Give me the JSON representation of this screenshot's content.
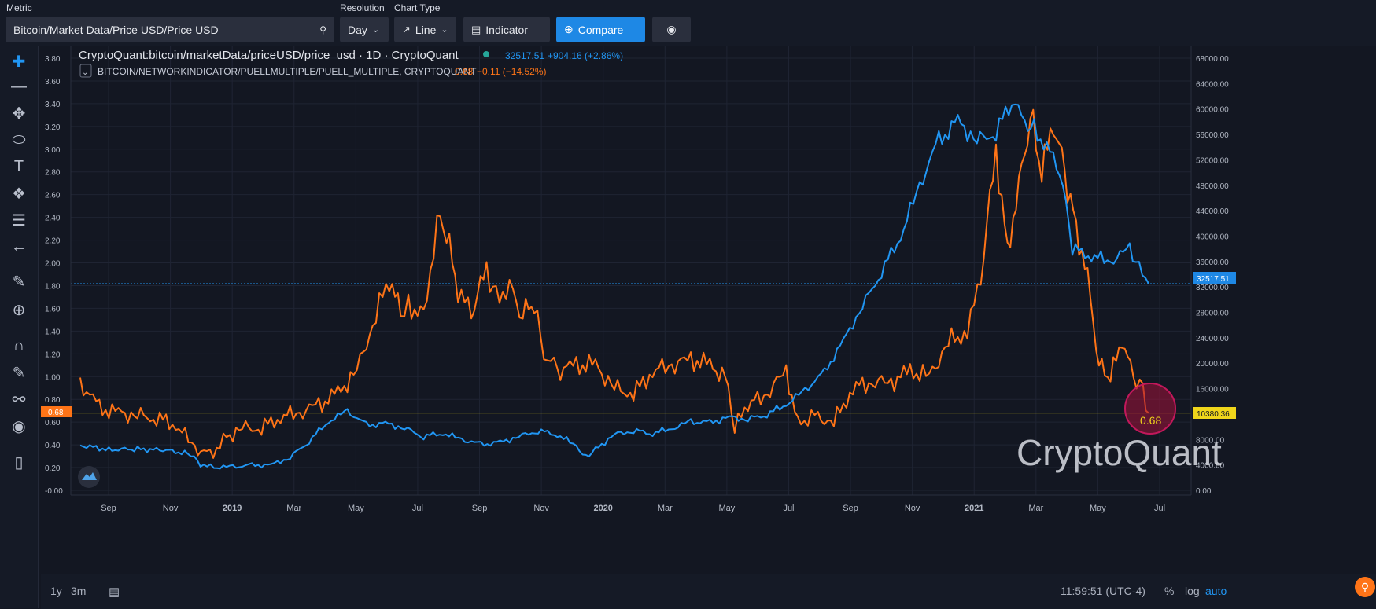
{
  "toolbar": {
    "metric_label": "Metric",
    "metric_value": "Bitcoin/Market Data/Price USD/Price USD",
    "resolution_label": "Resolution",
    "resolution_value": "Day",
    "chart_type_label": "Chart Type",
    "chart_type_value": "Line",
    "indicator_label": "Indicator",
    "compare_label": "Compare"
  },
  "legend": {
    "main_title": "CryptoQuant:bitcoin/marketData/priceUSD/price_usd · 1D · CryptoQuant",
    "main_value": "32517.51",
    "main_change": "+904.16 (+2.86%)",
    "second_title": "BITCOIN/NETWORKINDICATOR/PUELLMULTIPLE/PUELL_MULTIPLE, CRYPTOQUANT",
    "second_value": "0.68",
    "second_change": "−0.11 (−14.52%)"
  },
  "watermark": "CryptoQuant",
  "callout_value": "0.68",
  "left_price_badge": "0.68",
  "right_price_badge": "32517.51",
  "right_level_badge": "10380.36",
  "bottom": {
    "range_1y": "1y",
    "range_3m": "3m",
    "clock": "11:59:51 (UTC-4)",
    "pct": "%",
    "log": "log",
    "auto": "auto"
  },
  "colors": {
    "price_line": "#2196f3",
    "puell_line": "#ff7417",
    "level_line": "#f0d61b",
    "background": "#131722",
    "accent": "#1e88e5"
  },
  "icons": [
    "search-icon",
    "chevron-down-icon",
    "line-chart-icon",
    "plus-circle-icon",
    "camera-icon",
    "crosshair-icon",
    "trend-line-icon",
    "pitchfork-icon",
    "ellipse-icon",
    "text-icon",
    "pattern-icon",
    "fib-icon",
    "arrow-left-icon",
    "ruler-icon",
    "zoom-icon",
    "magnet-icon",
    "lock-draw-icon",
    "lock-icon",
    "eye-icon",
    "trash-icon",
    "zoom-fab-icon"
  ],
  "chart_data": {
    "type": "line",
    "x_ticks": [
      "Sep",
      "Nov",
      "2019",
      "Mar",
      "May",
      "Jul",
      "Sep",
      "Nov",
      "2020",
      "Mar",
      "May",
      "Jul",
      "Sep",
      "Nov",
      "2021",
      "Mar",
      "May",
      "Jul"
    ],
    "left_axis": {
      "ticks": [
        "3.80",
        "3.60",
        "3.40",
        "3.20",
        "3.00",
        "2.80",
        "2.60",
        "2.40",
        "2.20",
        "2.00",
        "1.80",
        "1.60",
        "1.40",
        "1.20",
        "1.00",
        "0.80",
        "0.60",
        "0.40",
        "0.20",
        "-0.00"
      ],
      "range": [
        0,
        3.8
      ]
    },
    "right_axis": {
      "ticks": [
        "68000.00",
        "64000.00",
        "60000.00",
        "56000.00",
        "52000.00",
        "48000.00",
        "44000.00",
        "40000.00",
        "36000.00",
        "32000.00",
        "28000.00",
        "24000.00",
        "20000.00",
        "16000.00",
        "12000.00",
        "8000.00",
        "4000.00",
        "0.00"
      ],
      "range": [
        0,
        68000
      ]
    },
    "level_line": 0.68,
    "price_reference": 32517.51,
    "series": [
      {
        "name": "CryptoQuant:bitcoin/marketData/priceUSD/price_usd",
        "axis": "right",
        "points": [
          [
            0,
            7100
          ],
          [
            1.5,
            6400
          ],
          [
            3,
            6500
          ],
          [
            4.5,
            6300
          ],
          [
            5.8,
            5700
          ],
          [
            6.3,
            4100
          ],
          [
            7.0,
            3600
          ],
          [
            8,
            3700
          ],
          [
            9,
            3900
          ],
          [
            10,
            4000
          ],
          [
            11,
            5200
          ],
          [
            12,
            7800
          ],
          [
            13,
            10800
          ],
          [
            14,
            12500
          ],
          [
            15,
            10200
          ],
          [
            16,
            10500
          ],
          [
            17,
            9800
          ],
          [
            18,
            8500
          ],
          [
            19,
            9000
          ],
          [
            20,
            8000
          ],
          [
            21,
            7200
          ],
          [
            22,
            7500
          ],
          [
            23,
            8500
          ],
          [
            24,
            9400
          ],
          [
            25,
            8800
          ],
          [
            26,
            7000
          ],
          [
            26.5,
            5200
          ],
          [
            27,
            6400
          ],
          [
            28,
            8800
          ],
          [
            29,
            9400
          ],
          [
            30,
            9000
          ],
          [
            31,
            9700
          ],
          [
            32,
            10800
          ],
          [
            33,
            10600
          ],
          [
            34,
            11500
          ],
          [
            35,
            11200
          ],
          [
            36,
            12000
          ],
          [
            37,
            13500
          ],
          [
            38,
            15800
          ],
          [
            39,
            18500
          ],
          [
            40,
            23500
          ],
          [
            41,
            29000
          ],
          [
            42,
            34500
          ],
          [
            43,
            40000
          ],
          [
            44,
            48000
          ],
          [
            45,
            55000
          ],
          [
            46,
            58000
          ],
          [
            47,
            55000
          ],
          [
            48,
            56500
          ],
          [
            49,
            62000
          ],
          [
            49.5,
            58000
          ],
          [
            50,
            57000
          ],
          [
            51,
            52000
          ],
          [
            51.5,
            48000
          ],
          [
            52,
            38000
          ],
          [
            53,
            37000
          ],
          [
            54,
            36000
          ],
          [
            55,
            38000
          ],
          [
            55.5,
            35000
          ],
          [
            56,
            32517
          ]
        ]
      },
      {
        "name": "BITCOIN/NETWORKINDICATOR/PUELLMULTIPLE/PUELL_MULTIPLE",
        "axis": "left",
        "points": [
          [
            0,
            0.95
          ],
          [
            1,
            0.72
          ],
          [
            2,
            0.68
          ],
          [
            3,
            0.66
          ],
          [
            4,
            0.64
          ],
          [
            5,
            0.58
          ],
          [
            6,
            0.38
          ],
          [
            6.8,
            0.3
          ],
          [
            7.5,
            0.45
          ],
          [
            8.5,
            0.55
          ],
          [
            9.5,
            0.55
          ],
          [
            10.5,
            0.65
          ],
          [
            11.5,
            0.68
          ],
          [
            12.5,
            0.75
          ],
          [
            13.5,
            0.85
          ],
          [
            14.5,
            1.05
          ],
          [
            15.5,
            1.55
          ],
          [
            16.2,
            1.85
          ],
          [
            16.8,
            1.55
          ],
          [
            17.2,
            1.65
          ],
          [
            18,
            1.5
          ],
          [
            18.7,
            2.38
          ],
          [
            19.2,
            2.25
          ],
          [
            19.8,
            1.75
          ],
          [
            20.5,
            1.55
          ],
          [
            21.3,
            1.95
          ],
          [
            21.8,
            1.7
          ],
          [
            22.5,
            1.8
          ],
          [
            23.2,
            1.55
          ],
          [
            23.8,
            1.65
          ],
          [
            24.3,
            1.2
          ],
          [
            25,
            1.05
          ],
          [
            26,
            1.1
          ],
          [
            27,
            1.1
          ],
          [
            28,
            0.9
          ],
          [
            29,
            0.85
          ],
          [
            30,
            1.05
          ],
          [
            31,
            1.1
          ],
          [
            32,
            1.15
          ],
          [
            33,
            1.1
          ],
          [
            33.8,
            1.0
          ],
          [
            34.3,
            0.55
          ],
          [
            35,
            0.75
          ],
          [
            36,
            0.85
          ],
          [
            37,
            1.05
          ],
          [
            37.6,
            0.6
          ],
          [
            38.5,
            0.65
          ],
          [
            39.5,
            0.6
          ],
          [
            40.5,
            0.9
          ],
          [
            41.5,
            0.95
          ],
          [
            42.5,
            0.95
          ],
          [
            43.5,
            1.05
          ],
          [
            44.5,
            1.0
          ],
          [
            45.5,
            1.3
          ],
          [
            46.5,
            1.4
          ],
          [
            47.2,
            1.85
          ],
          [
            48,
            3.0
          ],
          [
            48.6,
            2.1
          ],
          [
            49.2,
            2.7
          ],
          [
            49.8,
            3.3
          ],
          [
            50.4,
            2.8
          ],
          [
            51,
            3.2
          ],
          [
            51.6,
            2.8
          ],
          [
            52.2,
            2.3
          ],
          [
            52.8,
            1.9
          ],
          [
            53.4,
            1.1
          ],
          [
            54,
            1.0
          ],
          [
            54.6,
            1.3
          ],
          [
            55.2,
            1.0
          ],
          [
            55.7,
            0.9
          ],
          [
            56,
            0.68
          ]
        ]
      }
    ]
  }
}
